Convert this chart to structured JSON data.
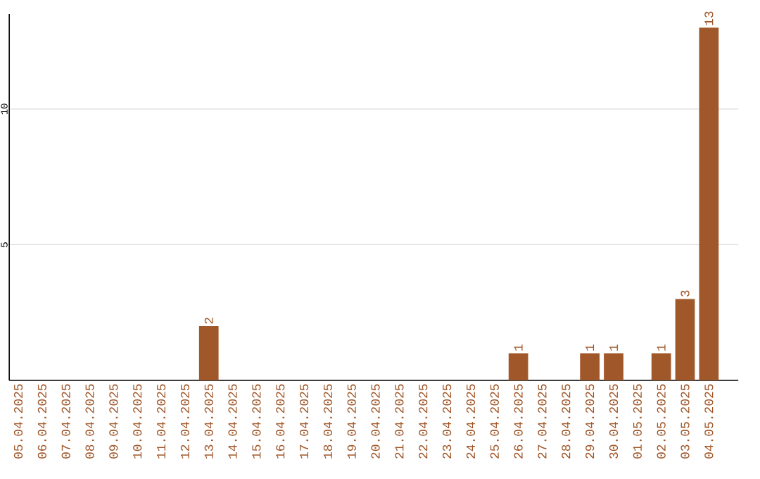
{
  "chart_data": {
    "type": "bar",
    "categories": [
      "05.04.2025",
      "06.04.2025",
      "07.04.2025",
      "08.04.2025",
      "09.04.2025",
      "10.04.2025",
      "11.04.2025",
      "12.04.2025",
      "13.04.2025",
      "14.04.2025",
      "15.04.2025",
      "16.04.2025",
      "17.04.2025",
      "18.04.2025",
      "19.04.2025",
      "20.04.2025",
      "21.04.2025",
      "22.04.2025",
      "23.04.2025",
      "24.04.2025",
      "25.04.2025",
      "26.04.2025",
      "27.04.2025",
      "28.04.2025",
      "29.04.2025",
      "30.04.2025",
      "01.05.2025",
      "02.05.2025",
      "03.05.2025",
      "04.05.2025"
    ],
    "values": [
      0,
      0,
      0,
      0,
      0,
      0,
      0,
      0,
      2,
      0,
      0,
      0,
      0,
      0,
      0,
      0,
      0,
      0,
      0,
      0,
      0,
      1,
      0,
      0,
      1,
      1,
      0,
      1,
      3,
      13
    ],
    "value_labels": [
      null,
      null,
      null,
      null,
      null,
      null,
      null,
      null,
      "2",
      null,
      null,
      null,
      null,
      null,
      null,
      null,
      null,
      null,
      null,
      null,
      null,
      "1",
      null,
      null,
      "1",
      "1",
      null,
      "1",
      "3",
      "13"
    ],
    "color": "#a0582a",
    "ylim": [
      0,
      13.5
    ],
    "yticks": [
      5,
      10
    ],
    "grid": "y"
  }
}
